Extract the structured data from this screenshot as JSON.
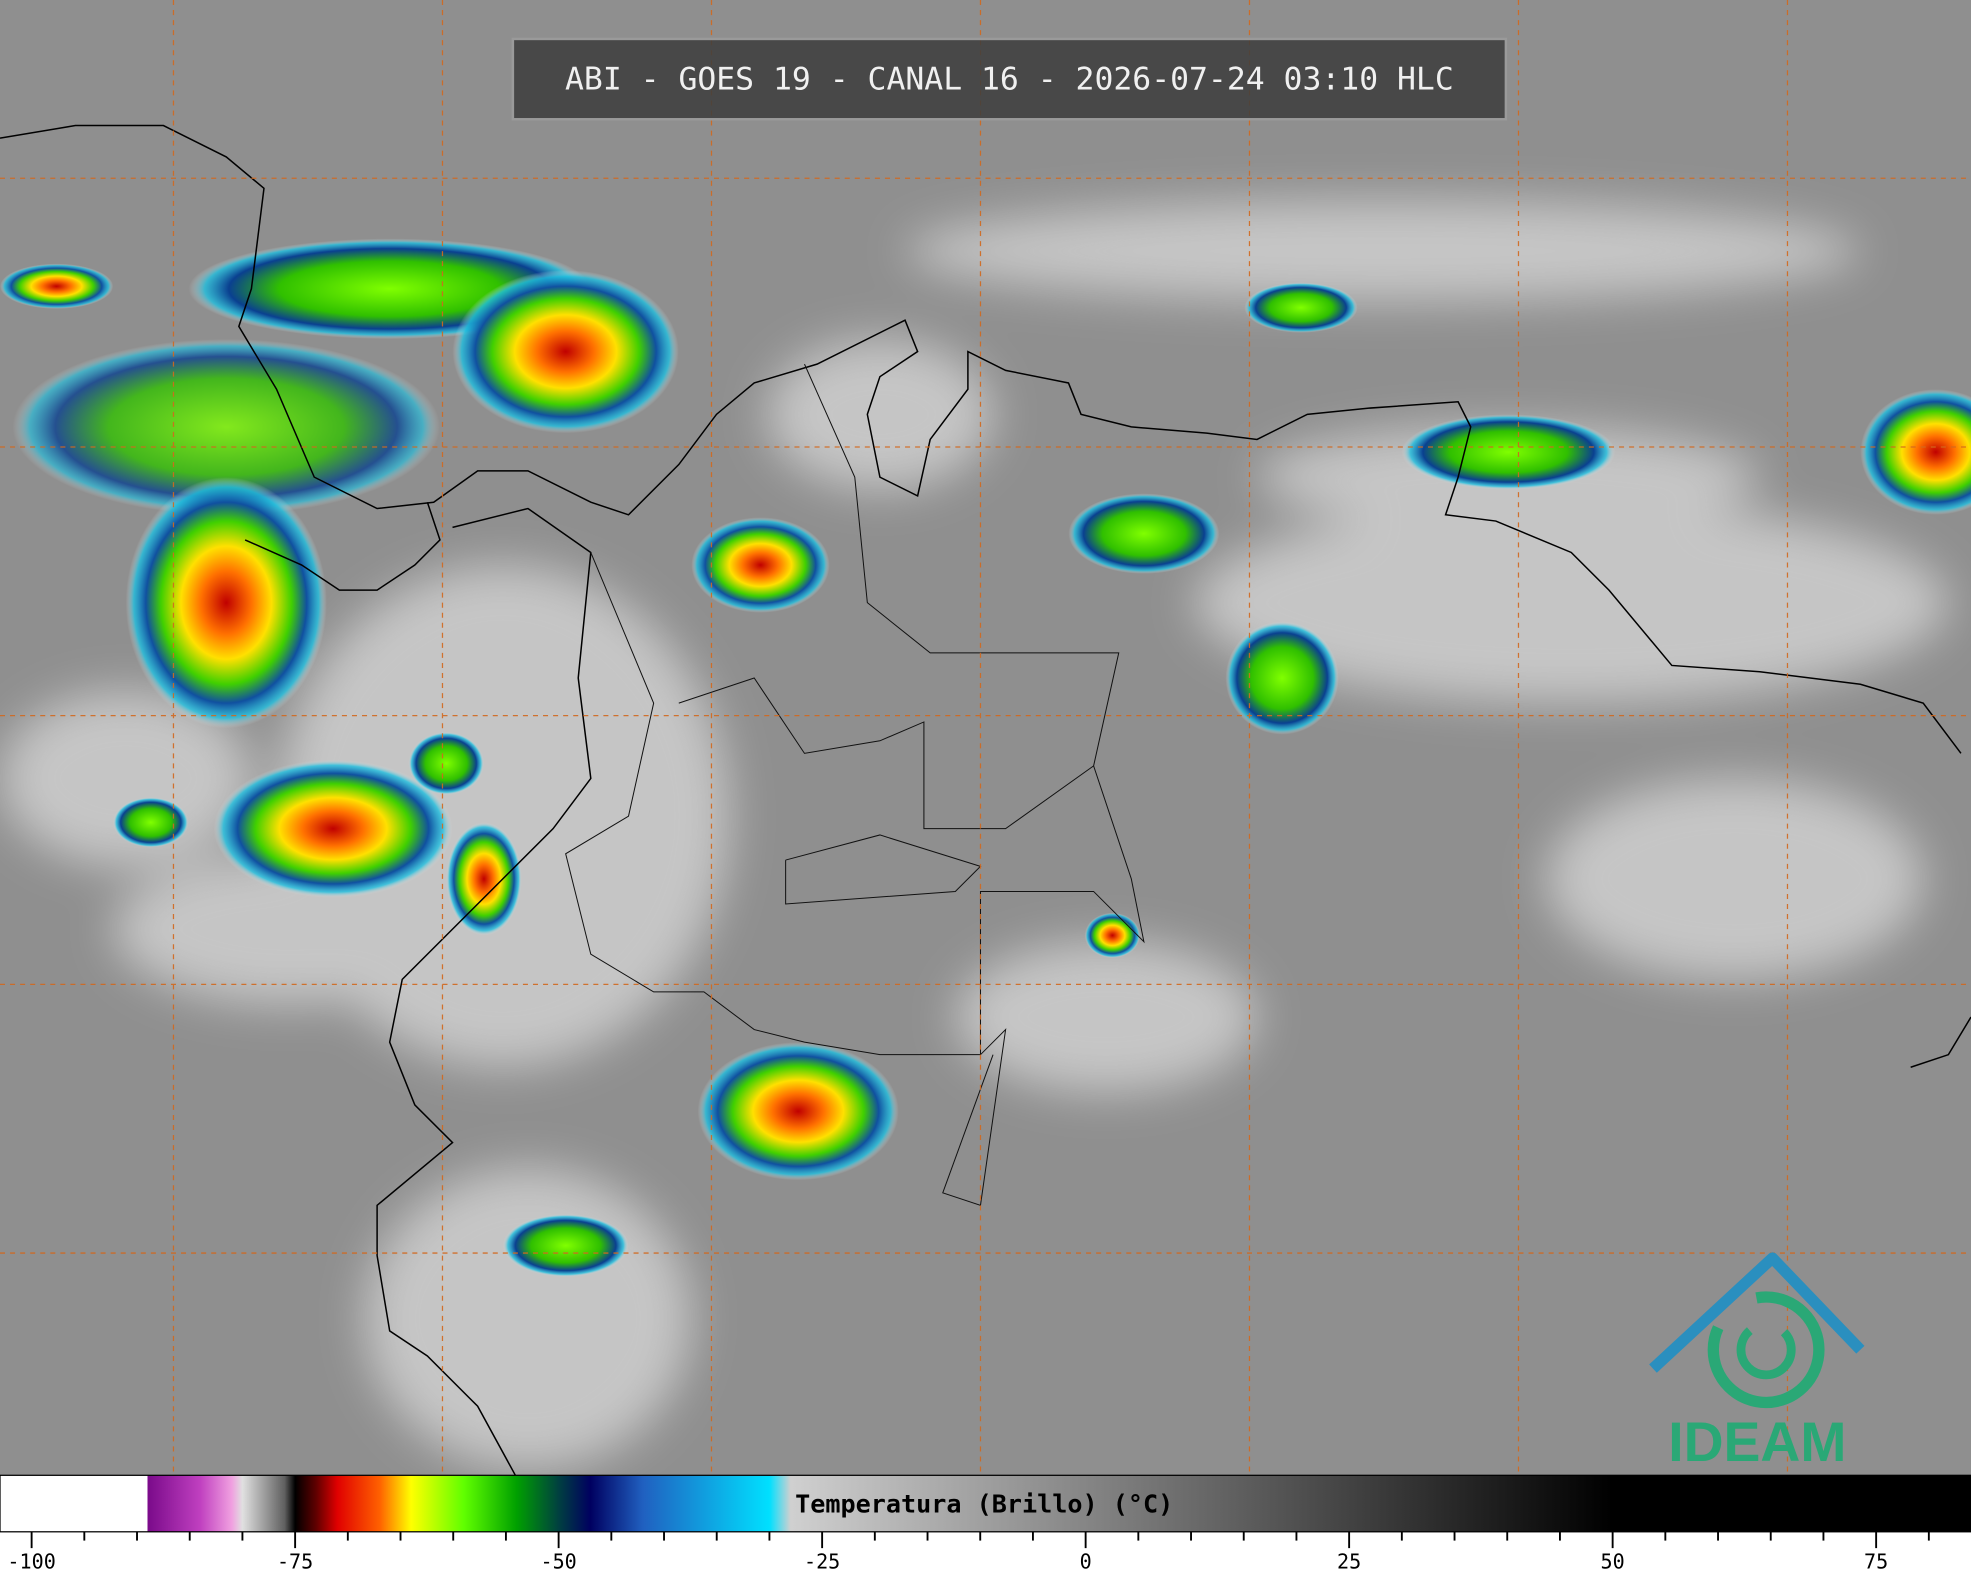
{
  "header": {
    "title": "ABI - GOES 19 - CANAL 16 - 2026-07-24 03:10 HLC"
  },
  "colorbar": {
    "label": "Temperatura (Brillo) (°C)",
    "xlim": [
      -103,
      84
    ],
    "xticks": [
      -100,
      -75,
      -50,
      -25,
      0,
      25,
      50,
      75
    ],
    "minor_xticks": [
      -95,
      -90,
      -85,
      -80,
      -70,
      -65,
      -60,
      -55,
      -45,
      -40,
      -35,
      -30,
      -20,
      -15,
      -10,
      -5,
      5,
      10,
      15,
      20,
      30,
      35,
      40,
      45,
      55,
      60,
      65,
      70,
      80
    ],
    "colorscale": [
      [
        -103,
        "#ffffff"
      ],
      [
        -89,
        "#ffffff"
      ],
      [
        -89,
        "#7a0a8a"
      ],
      [
        -84,
        "#c040c0"
      ],
      [
        -81,
        "#f0a0e0"
      ],
      [
        -80,
        "#e0e0e0"
      ],
      [
        -76,
        "#606060"
      ],
      [
        -75,
        "#000000"
      ],
      [
        -73,
        "#600000"
      ],
      [
        -71,
        "#e00000"
      ],
      [
        -67,
        "#ff6000"
      ],
      [
        -64,
        "#ffff00"
      ],
      [
        -59,
        "#60ff00"
      ],
      [
        -54,
        "#00a000"
      ],
      [
        -50,
        "#004040"
      ],
      [
        -47,
        "#000060"
      ],
      [
        -42,
        "#2060c0"
      ],
      [
        -30,
        "#00e0ff"
      ],
      [
        -28,
        "#d0d0d0"
      ],
      [
        50,
        "#000000"
      ],
      [
        84,
        "#000000"
      ]
    ]
  },
  "logo": {
    "text": "IDEAM"
  }
}
